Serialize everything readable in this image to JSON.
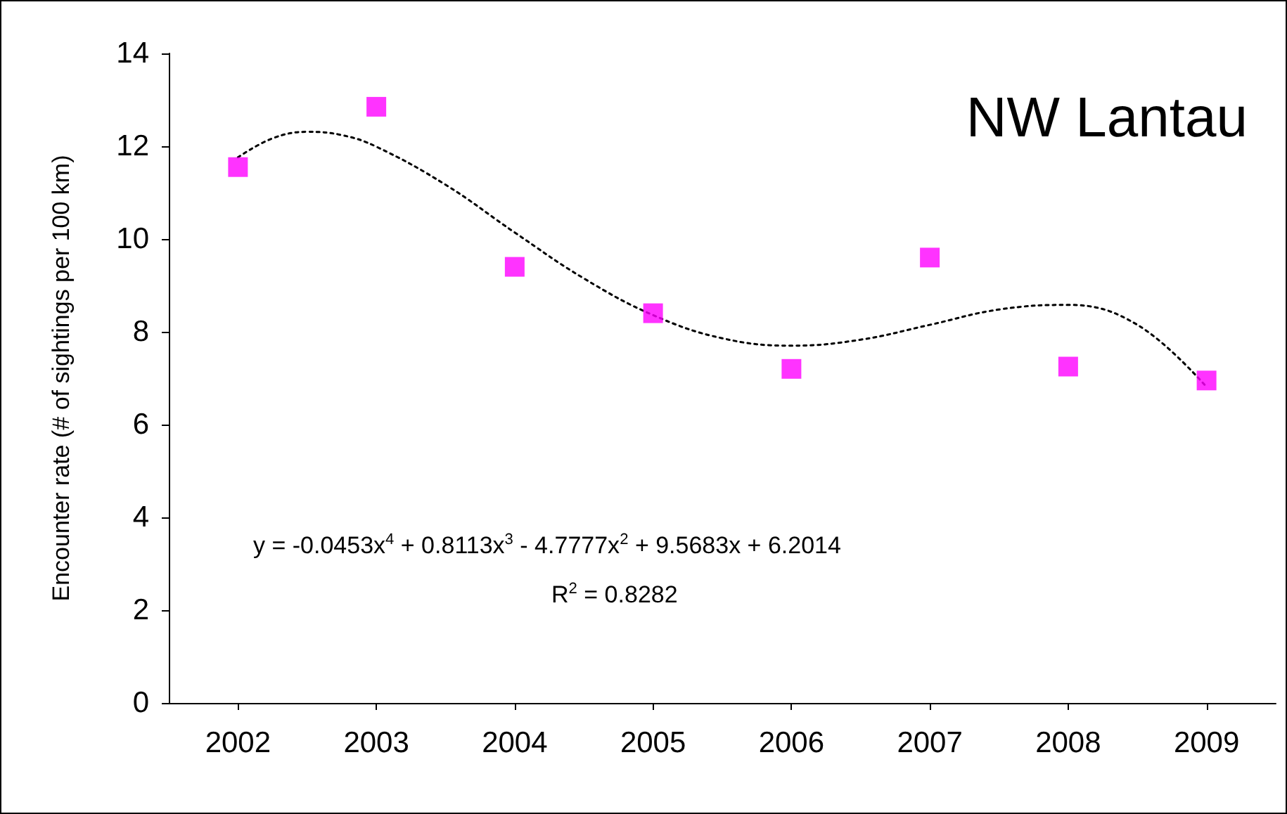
{
  "chart_data": {
    "type": "scatter",
    "ylabel": "Encounter rate (# of sightings per 100 km)",
    "annotations": [
      "NW Lantau",
      "y = -0.0453x$^{4}$ + 0.8113x$^{3}$ - 4.7777x$^{2}$ + 9.5683x + 6.2014",
      "R$^{2}$ = 0.8282"
    ],
    "xlim": [
      2001.5,
      2009.5
    ],
    "xticks": [
      2002,
      2003,
      2004,
      2005,
      2006,
      2007,
      2008,
      2009
    ],
    "ylim": [
      0,
      14
    ],
    "yticks": [
      0,
      2,
      4,
      6,
      8,
      10,
      12,
      14
    ],
    "grid": false,
    "series": [
      {
        "color": "#ff00ff",
        "marker": "square",
        "x": [
          2002,
          2003,
          2004,
          2005,
          2006,
          2007,
          2008,
          2009
        ],
        "values": [
          11.55,
          12.85,
          9.4,
          8.4,
          7.2,
          9.6,
          7.25,
          6.95
        ]
      },
      {
        "type": "line",
        "color": "#000000",
        "marker": "none",
        "line_style": "dotted",
        "x": [
          2002,
          2002.25,
          2002.5,
          2002.75,
          2003,
          2003.5,
          2004,
          2004.5,
          2005,
          2005.5,
          2006,
          2006.5,
          2007,
          2007.5,
          2008,
          2008.5,
          2009
        ],
        "values": [
          11.76,
          12.17,
          12.31,
          12.24,
          11.99,
          11.17,
          10.14,
          9.15,
          8.36,
          7.86,
          7.7,
          7.83,
          8.15,
          8.48,
          8.58,
          8.15,
          6.81
        ]
      }
    ]
  }
}
